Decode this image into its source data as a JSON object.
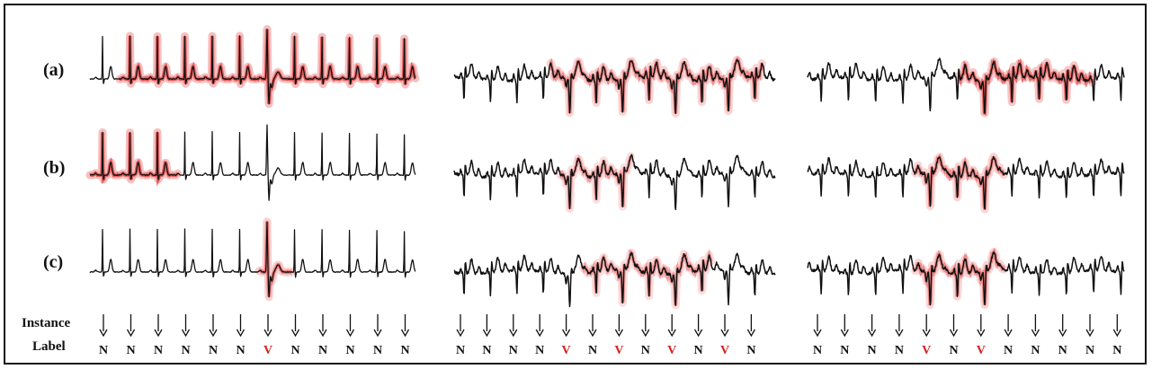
{
  "rows": [
    {
      "label": "(a)"
    },
    {
      "label": "(b)"
    },
    {
      "label": "(c)"
    }
  ],
  "footer": {
    "line1": "Instance",
    "line2": "Label"
  },
  "colors": {
    "normal": "#111111",
    "ventricular": "#d42020",
    "highlight": "#e23a3a",
    "trace": "#111111"
  },
  "panels": [
    {
      "name": "left",
      "labels": [
        "N",
        "N",
        "N",
        "N",
        "N",
        "N",
        "V",
        "N",
        "N",
        "N",
        "N",
        "N"
      ],
      "highlight": [
        {
          "start": 0.09,
          "end": 1.0,
          "strength": 0.9
        },
        {
          "start": 0.0,
          "end": 0.27,
          "strength": 0.9
        },
        {
          "start": 0.52,
          "end": 0.62,
          "strength": 0.7
        }
      ]
    },
    {
      "name": "middle",
      "labels": [
        "N",
        "N",
        "N",
        "N",
        "V",
        "N",
        "V",
        "N",
        "V",
        "N",
        "V",
        "N"
      ],
      "highlight": [
        {
          "start": 0.3,
          "end": 0.96,
          "strength": 0.6
        },
        {
          "start": 0.33,
          "end": 0.55,
          "strength": 0.5
        },
        {
          "start": 0.4,
          "end": 0.8,
          "strength": 0.5
        }
      ]
    },
    {
      "name": "right",
      "labels": [
        "N",
        "N",
        "N",
        "N",
        "V",
        "N",
        "V",
        "N",
        "N",
        "N",
        "N",
        "N"
      ],
      "highlight": [
        {
          "start": 0.48,
          "end": 0.9,
          "strength": 0.8
        },
        {
          "start": 0.34,
          "end": 0.62,
          "strength": 0.6
        },
        {
          "start": 0.34,
          "end": 0.62,
          "strength": 0.6
        }
      ]
    }
  ]
}
